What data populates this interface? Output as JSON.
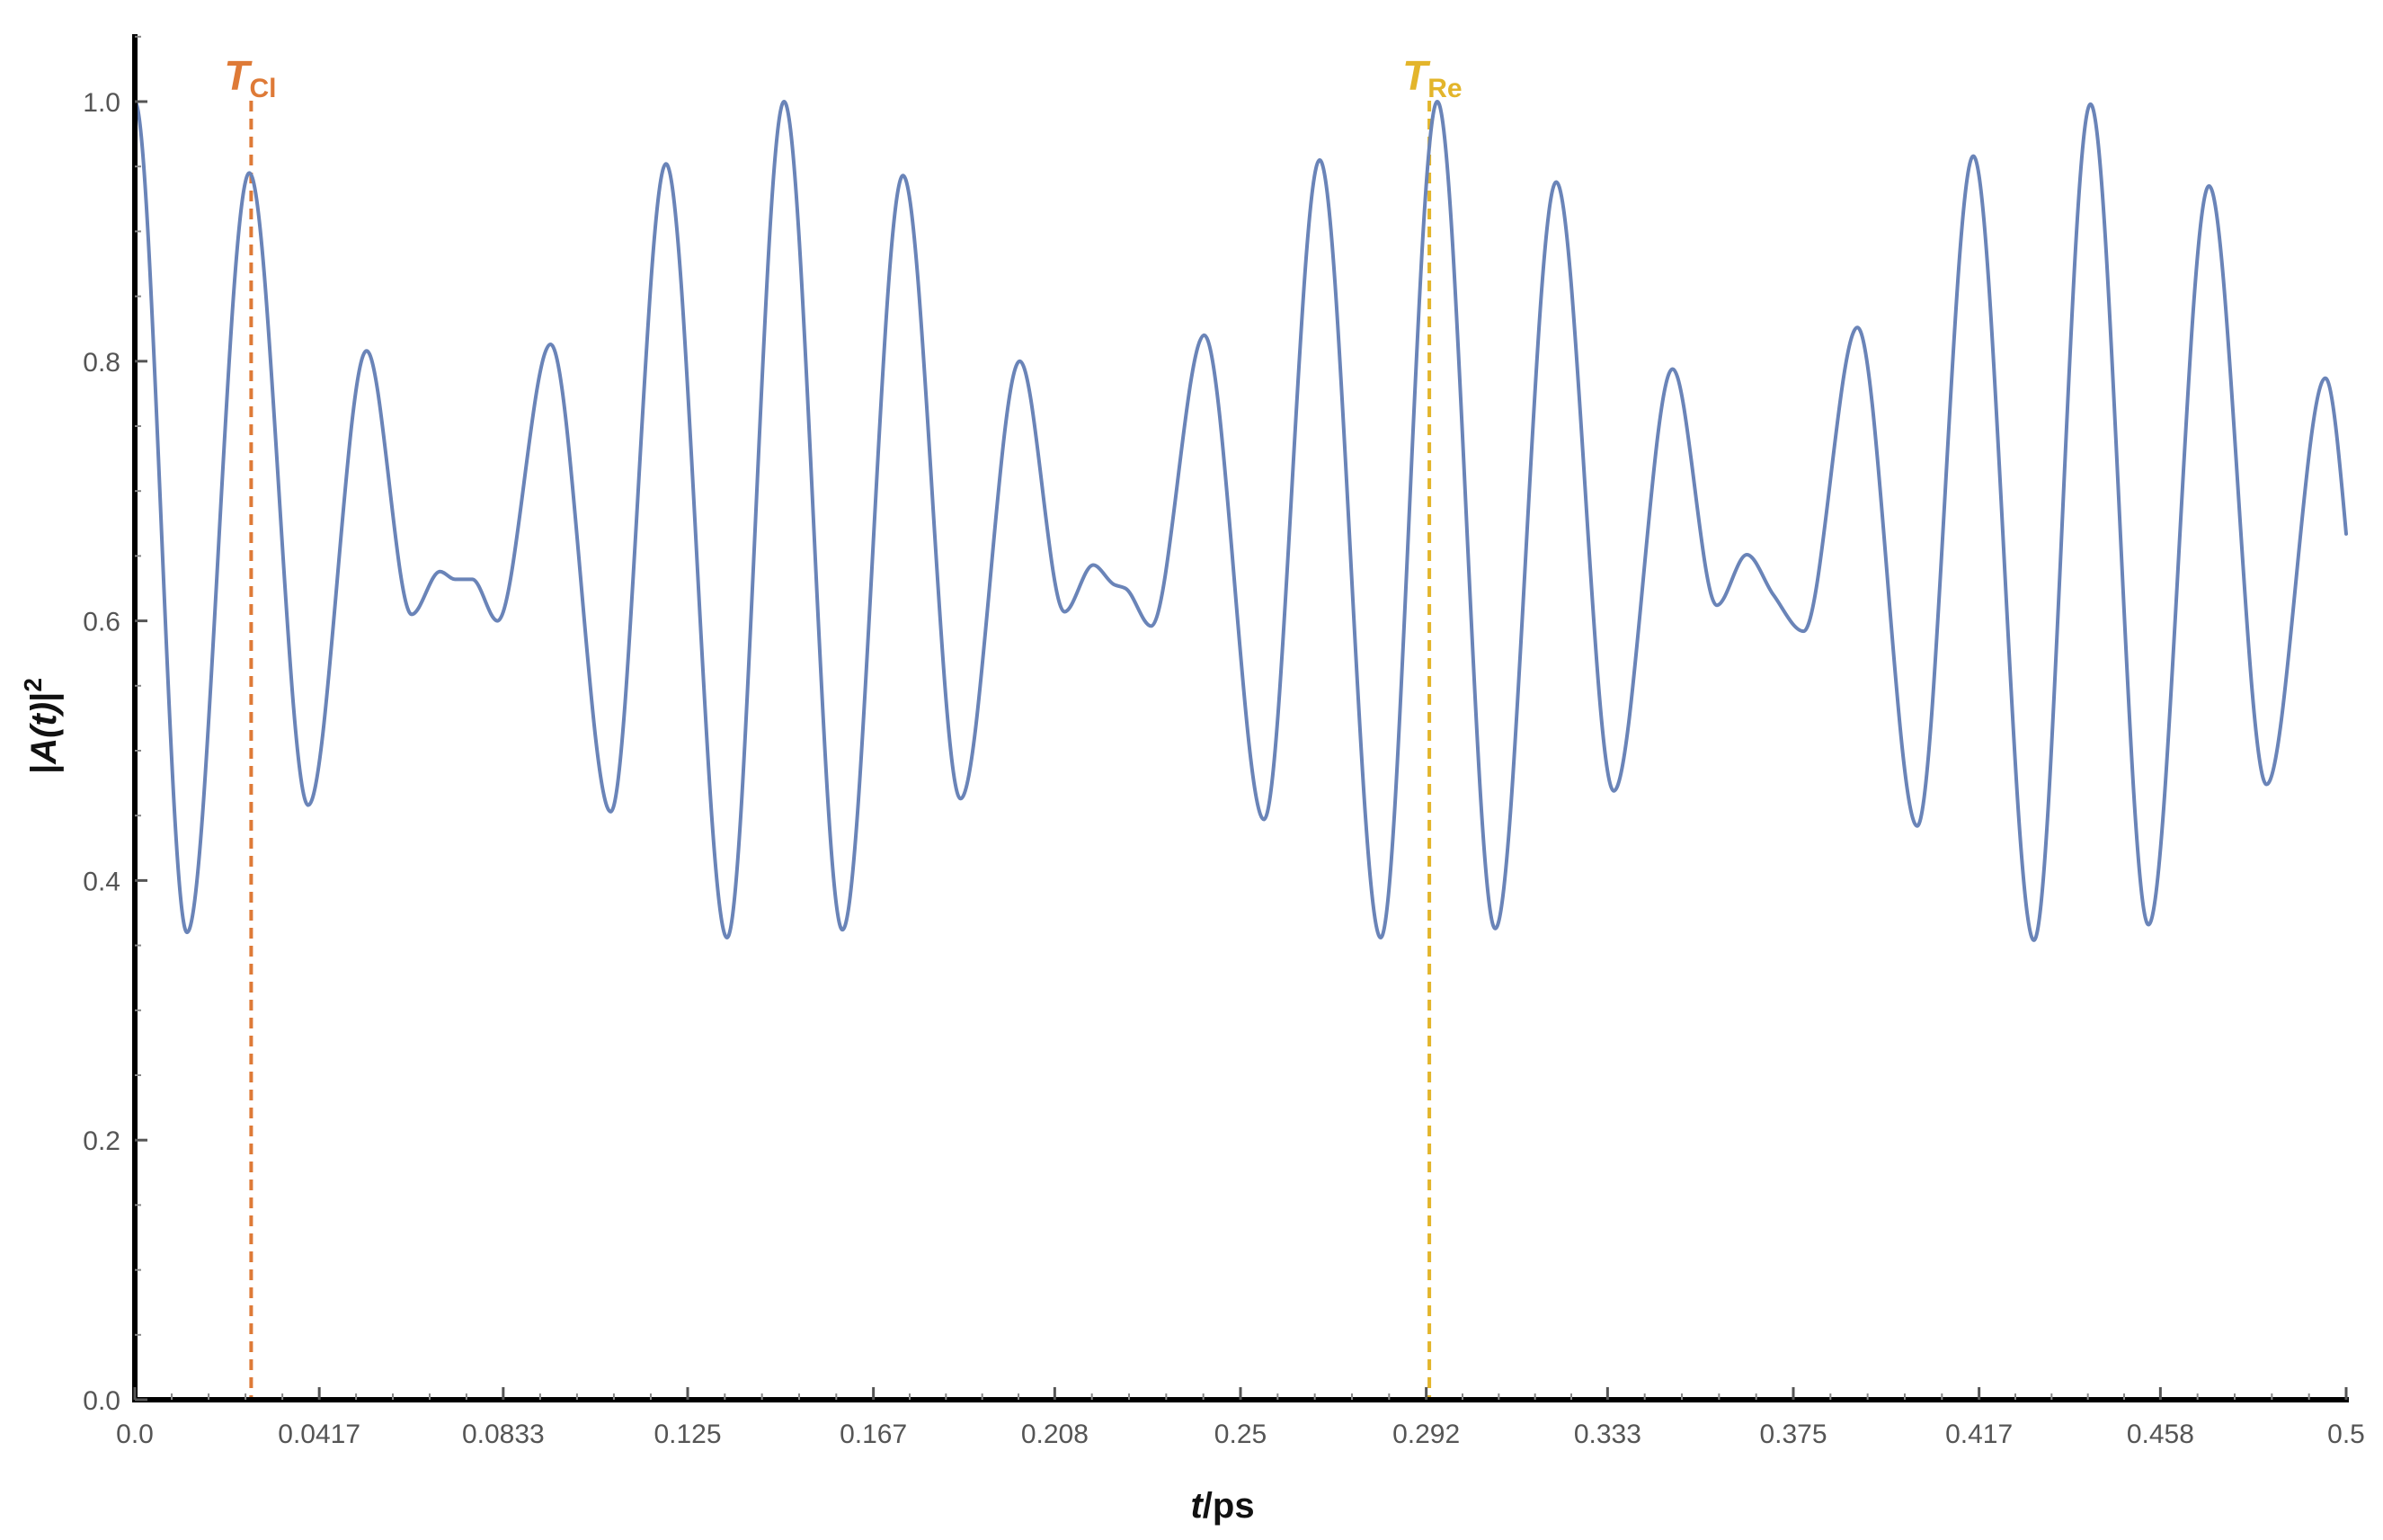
{
  "chart_data": {
    "type": "line",
    "title": "",
    "xlabel": {
      "italic": "t",
      "rest": "/ps"
    },
    "ylabel": {
      "left": "|",
      "italic": "A(t)",
      "right": "|",
      "sup": "2"
    },
    "xlim": [
      0,
      0.5
    ],
    "ylim": [
      0,
      1.05
    ],
    "x_ticks": [
      0,
      0.0417,
      0.0833,
      0.125,
      0.167,
      0.208,
      0.25,
      0.292,
      0.333,
      0.375,
      0.417,
      0.458,
      0.5
    ],
    "x_tick_labels": [
      "0.0",
      "0.0417",
      "0.0833",
      "0.125",
      "0.167",
      "0.208",
      "0.25",
      "0.292",
      "0.333",
      "0.375",
      "0.417",
      "0.458",
      "0.5"
    ],
    "y_ticks": [
      0,
      0.2,
      0.4,
      0.6,
      0.8,
      1.0
    ],
    "y_tick_labels": [
      "0.0",
      "0.2",
      "0.4",
      "0.6",
      "0.8",
      "1.0"
    ],
    "grid": false,
    "series": [
      {
        "color": "#6a84b8",
        "points": [
          [
            0.0,
            1.0
          ],
          [
            0.0118,
            0.36
          ],
          [
            0.0259,
            0.945
          ],
          [
            0.0392,
            0.458
          ],
          [
            0.0524,
            0.808
          ],
          [
            0.0626,
            0.605
          ],
          [
            0.069,
            0.638
          ],
          [
            0.0724,
            0.632
          ],
          [
            0.0763,
            0.632
          ],
          [
            0.082,
            0.6
          ],
          [
            0.094,
            0.813
          ],
          [
            0.1076,
            0.453
          ],
          [
            0.1201,
            0.952
          ],
          [
            0.1339,
            0.356
          ],
          [
            0.1468,
            1.0
          ],
          [
            0.16,
            0.362
          ],
          [
            0.1737,
            0.943
          ],
          [
            0.1867,
            0.463
          ],
          [
            0.2001,
            0.8
          ],
          [
            0.2102,
            0.607
          ],
          [
            0.2167,
            0.643
          ],
          [
            0.2214,
            0.628
          ],
          [
            0.224,
            0.625
          ],
          [
            0.2298,
            0.596
          ],
          [
            0.2418,
            0.82
          ],
          [
            0.2553,
            0.447
          ],
          [
            0.2679,
            0.955
          ],
          [
            0.2817,
            0.356
          ],
          [
            0.2945,
            1.0
          ],
          [
            0.3076,
            0.363
          ],
          [
            0.3214,
            0.938
          ],
          [
            0.3344,
            0.469
          ],
          [
            0.3477,
            0.794
          ],
          [
            0.3577,
            0.612
          ],
          [
            0.3645,
            0.651
          ],
          [
            0.3705,
            0.62
          ],
          [
            0.3773,
            0.592
          ],
          [
            0.3895,
            0.826
          ],
          [
            0.403,
            0.442
          ],
          [
            0.4157,
            0.958
          ],
          [
            0.4294,
            0.354
          ],
          [
            0.4422,
            0.998
          ],
          [
            0.4553,
            0.366
          ],
          [
            0.469,
            0.935
          ],
          [
            0.482,
            0.474
          ],
          [
            0.4953,
            0.787
          ],
          [
            0.5,
            0.667
          ]
        ]
      }
    ],
    "markers": [
      {
        "main": "T",
        "sub": "Cl",
        "x": 0.0263,
        "color": "#de7a37"
      },
      {
        "main": "T",
        "sub": "Re",
        "x": 0.2927,
        "color": "#e3b52b"
      }
    ],
    "axis_color": "#000000"
  }
}
